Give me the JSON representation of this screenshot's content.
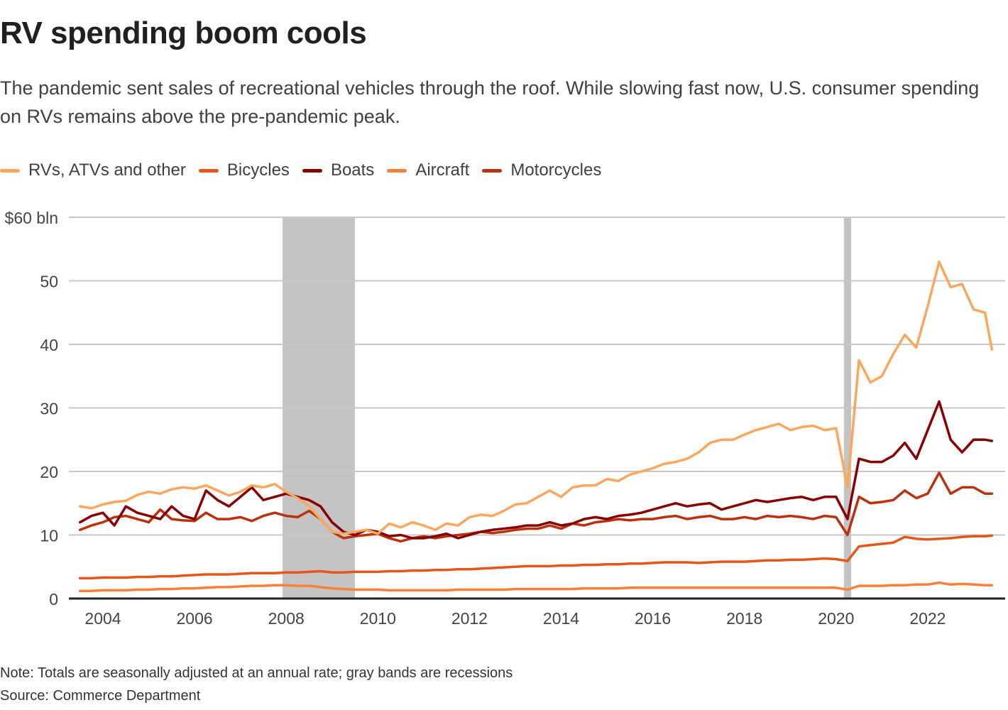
{
  "header": {
    "title": "RV spending boom cools",
    "subtitle": "The pandemic sent sales of recreational vehicles through the roof. While slowing fast now, U.S. consumer spending on RVs remains above the pre-pandemic peak."
  },
  "legend": [
    {
      "label": "RVs, ATVs and other",
      "color": "#fda65d"
    },
    {
      "label": "Bicycles",
      "color": "#e5561a"
    },
    {
      "label": "Boats",
      "color": "#870004"
    },
    {
      "label": "Aircraft",
      "color": "#fe8036"
    },
    {
      "label": "Motorcycles",
      "color": "#bb300e"
    }
  ],
  "notes": {
    "note": "Note: Totals are seasonally adjusted at an annual rate; gray bands are recessions",
    "source": "Source: Commerce Department"
  },
  "chart_data": {
    "type": "line",
    "title": "RV spending boom cools",
    "xlabel": "",
    "ylabel": "$ bln",
    "xlim": [
      2003.5,
      2023.5
    ],
    "ylim": [
      0,
      60
    ],
    "grid": true,
    "legend_position": "top-left",
    "y_ticks": [
      {
        "value": 0,
        "label": "0"
      },
      {
        "value": 10,
        "label": "10"
      },
      {
        "value": 20,
        "label": "20"
      },
      {
        "value": 30,
        "label": "30"
      },
      {
        "value": 40,
        "label": "40"
      },
      {
        "value": 50,
        "label": "50"
      },
      {
        "value": 60,
        "label": "$60 bln"
      }
    ],
    "x_ticks": [
      {
        "value": 2004,
        "label": "2004"
      },
      {
        "value": 2006,
        "label": "2006"
      },
      {
        "value": 2008,
        "label": "2008"
      },
      {
        "value": 2010,
        "label": "2010"
      },
      {
        "value": 2012,
        "label": "2012"
      },
      {
        "value": 2014,
        "label": "2014"
      },
      {
        "value": 2016,
        "label": "2016"
      },
      {
        "value": 2018,
        "label": "2018"
      },
      {
        "value": 2020,
        "label": "2020"
      },
      {
        "value": 2022,
        "label": "2022"
      }
    ],
    "recessions": [
      {
        "start": 2007.92,
        "end": 2009.5
      },
      {
        "start": 2020.17,
        "end": 2020.33
      }
    ],
    "x": [
      2003.5,
      2003.75,
      2004.0,
      2004.25,
      2004.5,
      2004.75,
      2005.0,
      2005.25,
      2005.5,
      2005.75,
      2006.0,
      2006.25,
      2006.5,
      2006.75,
      2007.0,
      2007.25,
      2007.5,
      2007.75,
      2008.0,
      2008.25,
      2008.5,
      2008.75,
      2009.0,
      2009.25,
      2009.5,
      2009.75,
      2010.0,
      2010.25,
      2010.5,
      2010.75,
      2011.0,
      2011.25,
      2011.5,
      2011.75,
      2012.0,
      2012.25,
      2012.5,
      2012.75,
      2013.0,
      2013.25,
      2013.5,
      2013.75,
      2014.0,
      2014.25,
      2014.5,
      2014.75,
      2015.0,
      2015.25,
      2015.5,
      2015.75,
      2016.0,
      2016.25,
      2016.5,
      2016.75,
      2017.0,
      2017.25,
      2017.5,
      2017.75,
      2018.0,
      2018.25,
      2018.5,
      2018.75,
      2019.0,
      2019.25,
      2019.5,
      2019.75,
      2020.0,
      2020.25,
      2020.5,
      2020.75,
      2021.0,
      2021.25,
      2021.5,
      2021.75,
      2022.0,
      2022.25,
      2022.5,
      2022.75,
      2023.0,
      2023.25,
      2023.4
    ],
    "series": [
      {
        "name": "RVs, ATVs and other",
        "color": "#fda65d",
        "values": [
          14.5,
          14.2,
          14.8,
          15.2,
          15.4,
          16.3,
          16.8,
          16.5,
          17.2,
          17.5,
          17.3,
          17.8,
          17.0,
          16.2,
          16.8,
          17.8,
          17.5,
          18.0,
          16.8,
          15.8,
          14.5,
          12.5,
          10.5,
          10.2,
          10.5,
          10.8,
          10.2,
          11.8,
          11.2,
          12.0,
          11.5,
          10.8,
          11.8,
          11.5,
          12.8,
          13.2,
          13.0,
          13.8,
          14.8,
          15.0,
          16.0,
          17.0,
          16.0,
          17.5,
          17.8,
          17.8,
          18.8,
          18.5,
          19.5,
          20.0,
          20.5,
          21.2,
          21.5,
          22.0,
          23.0,
          24.5,
          25.0,
          25.0,
          25.8,
          26.5,
          27.0,
          27.5,
          26.5,
          27.0,
          27.2,
          26.5,
          26.8,
          17.5,
          37.5,
          34.0,
          35.0,
          38.5,
          41.5,
          39.5,
          46.0,
          53.0,
          49.0,
          49.5,
          45.5,
          45.0,
          39.2
        ]
      },
      {
        "name": "Bicycles",
        "color": "#e5561a",
        "values": [
          3.2,
          3.2,
          3.3,
          3.3,
          3.3,
          3.4,
          3.4,
          3.5,
          3.5,
          3.6,
          3.7,
          3.8,
          3.8,
          3.8,
          3.9,
          4.0,
          4.0,
          4.0,
          4.1,
          4.1,
          4.2,
          4.3,
          4.1,
          4.1,
          4.2,
          4.2,
          4.2,
          4.3,
          4.3,
          4.4,
          4.4,
          4.5,
          4.5,
          4.6,
          4.6,
          4.7,
          4.8,
          4.9,
          5.0,
          5.1,
          5.1,
          5.1,
          5.2,
          5.2,
          5.3,
          5.3,
          5.4,
          5.4,
          5.5,
          5.5,
          5.6,
          5.7,
          5.7,
          5.7,
          5.6,
          5.7,
          5.8,
          5.8,
          5.8,
          5.9,
          6.0,
          6.0,
          6.1,
          6.1,
          6.2,
          6.3,
          6.2,
          5.9,
          8.2,
          8.4,
          8.6,
          8.8,
          9.7,
          9.4,
          9.3,
          9.4,
          9.5,
          9.7,
          9.8,
          9.8,
          9.9
        ]
      },
      {
        "name": "Boats",
        "color": "#870004",
        "values": [
          12.0,
          13.0,
          13.5,
          11.5,
          14.5,
          13.5,
          13.0,
          12.5,
          14.5,
          13.0,
          12.5,
          17.0,
          15.5,
          14.5,
          16.0,
          17.5,
          15.5,
          16.0,
          16.5,
          16.0,
          15.5,
          14.5,
          12.0,
          10.5,
          10.0,
          10.8,
          10.5,
          9.8,
          10.0,
          9.5,
          9.5,
          9.8,
          10.2,
          9.5,
          10.0,
          10.5,
          10.8,
          11.0,
          11.2,
          11.5,
          11.5,
          12.0,
          11.5,
          11.8,
          12.5,
          12.8,
          12.5,
          13.0,
          13.2,
          13.5,
          14.0,
          14.5,
          15.0,
          14.5,
          14.8,
          15.0,
          14.0,
          14.5,
          15.0,
          15.5,
          15.2,
          15.5,
          15.8,
          16.0,
          15.5,
          16.0,
          16.0,
          12.5,
          22.0,
          21.5,
          21.5,
          22.5,
          24.5,
          22.0,
          26.5,
          31.0,
          25.0,
          23.0,
          25.0,
          25.0,
          24.8
        ]
      },
      {
        "name": "Aircraft",
        "color": "#fe8036",
        "values": [
          1.2,
          1.2,
          1.3,
          1.3,
          1.3,
          1.4,
          1.4,
          1.5,
          1.5,
          1.6,
          1.6,
          1.7,
          1.8,
          1.8,
          1.9,
          2.0,
          2.0,
          2.1,
          2.1,
          2.0,
          2.0,
          1.8,
          1.6,
          1.5,
          1.4,
          1.4,
          1.4,
          1.3,
          1.3,
          1.3,
          1.3,
          1.3,
          1.3,
          1.4,
          1.4,
          1.4,
          1.4,
          1.4,
          1.5,
          1.5,
          1.5,
          1.5,
          1.5,
          1.5,
          1.6,
          1.6,
          1.6,
          1.6,
          1.7,
          1.7,
          1.7,
          1.7,
          1.7,
          1.7,
          1.7,
          1.7,
          1.7,
          1.7,
          1.7,
          1.7,
          1.7,
          1.7,
          1.7,
          1.7,
          1.7,
          1.7,
          1.7,
          1.4,
          2.0,
          2.0,
          2.0,
          2.1,
          2.1,
          2.2,
          2.2,
          2.5,
          2.2,
          2.3,
          2.2,
          2.1,
          2.1
        ]
      },
      {
        "name": "Motorcycles",
        "color": "#bb300e",
        "values": [
          10.8,
          11.5,
          12.0,
          12.8,
          13.0,
          12.5,
          12.0,
          14.0,
          12.5,
          12.3,
          12.2,
          13.5,
          12.5,
          12.5,
          12.8,
          12.2,
          13.0,
          13.5,
          13.0,
          12.8,
          13.8,
          12.5,
          10.5,
          9.5,
          9.8,
          10.0,
          10.2,
          9.5,
          9.0,
          9.5,
          9.8,
          9.5,
          9.8,
          10.0,
          10.2,
          10.5,
          10.3,
          10.5,
          10.8,
          11.0,
          11.0,
          11.5,
          11.0,
          11.8,
          11.5,
          12.0,
          12.2,
          12.5,
          12.3,
          12.5,
          12.5,
          12.8,
          13.0,
          12.5,
          12.8,
          13.0,
          12.5,
          12.5,
          12.8,
          12.5,
          13.0,
          12.8,
          13.0,
          12.8,
          12.5,
          13.0,
          12.8,
          10.0,
          16.0,
          15.0,
          15.2,
          15.5,
          17.0,
          15.8,
          16.5,
          19.8,
          16.5,
          17.5,
          17.5,
          16.5,
          16.5
        ]
      }
    ]
  }
}
